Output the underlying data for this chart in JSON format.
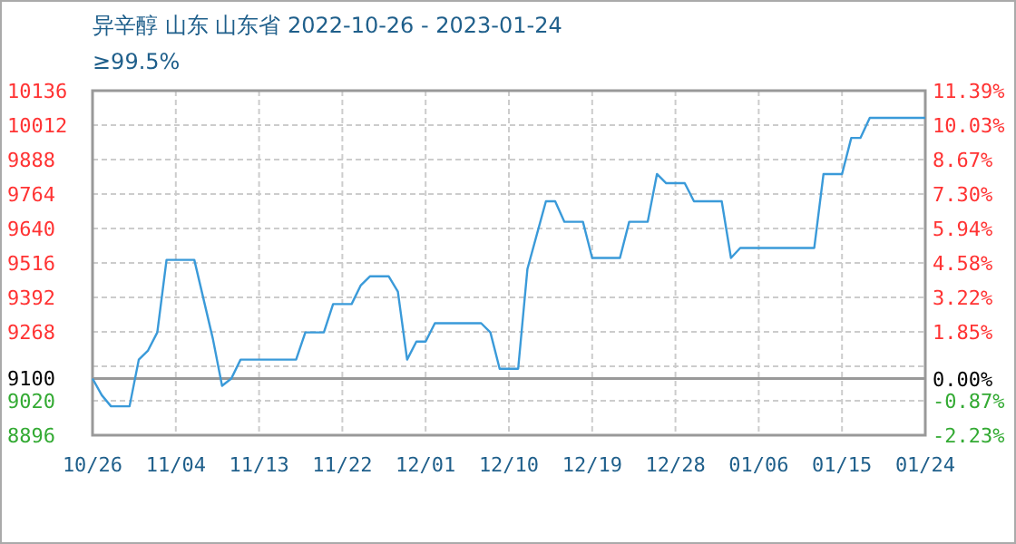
{
  "chart_data": {
    "type": "line",
    "title": "异辛醇 山东 山东省 2022-10-26 - 2023-01-24",
    "subtitle": "≥99.5%",
    "x": [
      "2022-10-26",
      "2022-10-27",
      "2022-10-28",
      "2022-10-30",
      "2022-10-31",
      "2022-11-01",
      "2022-11-02",
      "2022-11-03",
      "2022-11-06",
      "2022-11-08",
      "2022-11-09",
      "2022-11-10",
      "2022-11-11",
      "2022-11-17",
      "2022-11-18",
      "2022-11-20",
      "2022-11-21",
      "2022-11-23",
      "2022-11-24",
      "2022-11-25",
      "2022-11-27",
      "2022-11-28",
      "2022-11-29",
      "2022-11-30",
      "2022-12-01",
      "2022-12-02",
      "2022-12-07",
      "2022-12-08",
      "2022-12-09",
      "2022-12-11",
      "2022-12-12",
      "2022-12-14",
      "2022-12-15",
      "2022-12-16",
      "2022-12-18",
      "2022-12-19",
      "2022-12-22",
      "2022-12-23",
      "2022-12-25",
      "2022-12-26",
      "2022-12-27",
      "2022-12-29",
      "2022-12-30",
      "2023-01-02",
      "2023-01-03",
      "2023-01-04",
      "2023-01-12",
      "2023-01-13",
      "2023-01-15",
      "2023-01-16",
      "2023-01-17",
      "2023-01-18",
      "2023-01-24"
    ],
    "series": [
      {
        "color": "#3a9ad9",
        "values": [
          9100,
          9040,
          9000,
          9000,
          9168,
          9201,
          9266,
          9527,
          9527,
          9244,
          9074,
          9100,
          9168,
          9168,
          9266,
          9266,
          9368,
          9368,
          9436,
          9468,
          9468,
          9413,
          9168,
          9233,
          9233,
          9299,
          9299,
          9266,
          9135,
          9135,
          9494,
          9738,
          9738,
          9664,
          9664,
          9534,
          9534,
          9664,
          9664,
          9836,
          9803,
          9803,
          9738,
          9738,
          9534,
          9570,
          9570,
          9836,
          9836,
          9966,
          9966,
          10038,
          10038
        ]
      }
    ],
    "xlim": [
      "2022-10-26",
      "2023-01-24"
    ],
    "xticks": [
      {
        "value": "2022-10-26",
        "label": "10/26"
      },
      {
        "value": "2022-11-04",
        "label": "11/04"
      },
      {
        "value": "2022-11-13",
        "label": "11/13"
      },
      {
        "value": "2022-11-22",
        "label": "11/22"
      },
      {
        "value": "2022-12-01",
        "label": "12/01"
      },
      {
        "value": "2022-12-10",
        "label": "12/10"
      },
      {
        "value": "2022-12-19",
        "label": "12/19"
      },
      {
        "value": "2022-12-28",
        "label": "12/28"
      },
      {
        "value": "2023-01-06",
        "label": "01/06"
      },
      {
        "value": "2023-01-15",
        "label": "01/15"
      },
      {
        "value": "2023-01-24",
        "label": "01/24"
      }
    ],
    "ylim": [
      8896,
      10136
    ],
    "yticks": [
      8896,
      9020,
      9100,
      {
        "value": 9144,
        "label": null
      },
      9268,
      9392,
      9516,
      9640,
      9764,
      9888,
      10012,
      10136
    ],
    "y2lim": [
      -2.23,
      11.39
    ],
    "y2ticks": [
      {
        "value": -2.23,
        "label": "-2.23%"
      },
      {
        "value": -0.87,
        "label": "-0.87%"
      },
      {
        "value": 0,
        "label": "0.00%"
      },
      {
        "value": 1.85,
        "label": "1.85%"
      },
      {
        "value": 3.22,
        "label": "3.22%"
      },
      {
        "value": 4.58,
        "label": "4.58%"
      },
      {
        "value": 5.94,
        "label": "5.94%"
      },
      {
        "value": 7.3,
        "label": "7.30%"
      },
      {
        "value": 8.67,
        "label": "8.67%"
      },
      {
        "value": 10.03,
        "label": "10.03%"
      },
      {
        "value": 11.39,
        "label": "11.39%"
      }
    ],
    "ref_lines": [
      {
        "axis": "y",
        "value": 9100,
        "color": "#999999",
        "line_style": "solid"
      }
    ],
    "grid": true,
    "marker": "none",
    "line_style": "solid"
  }
}
